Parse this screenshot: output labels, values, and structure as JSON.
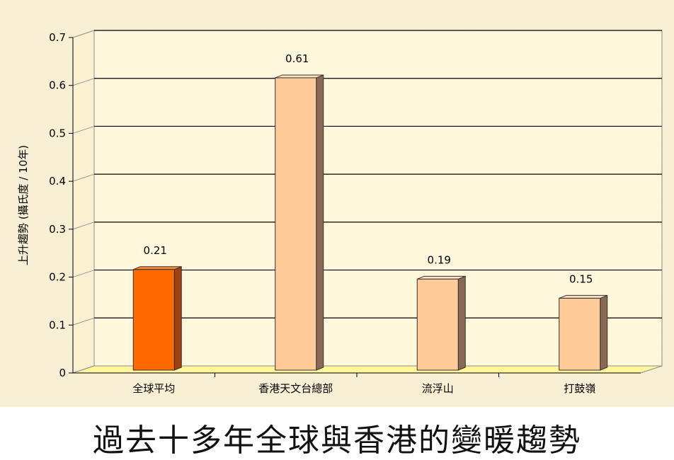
{
  "chart_data": {
    "type": "bar",
    "title": "過去十多年全球與香港的變暖趨勢",
    "ylabel": "上升趨勢 (攝氏度 / 10年)",
    "xlabel": "",
    "categories": [
      "全球平均",
      "香港天文台總部",
      "流浮山",
      "打鼓嶺"
    ],
    "values": [
      0.21,
      0.61,
      0.19,
      0.15
    ],
    "data_labels": [
      "0.21",
      "0.61",
      "0.19",
      "0.15"
    ],
    "ylim": [
      0,
      0.7
    ],
    "yticks": [
      0,
      0.1,
      0.2,
      0.3,
      0.4,
      0.5,
      0.6,
      0.7
    ],
    "ytick_labels": [
      "0",
      "0.1",
      "0.2",
      "0.3",
      "0.4",
      "0.5",
      "0.6",
      "0.7"
    ],
    "grid": true,
    "legend": "none",
    "colors": {
      "background": "#fbf2d8",
      "plot_area": "#fff8dc",
      "floor": "#fff59a",
      "highlight_bar": "#ff6a00",
      "highlight_bar_side": "#a04010",
      "bar": "#ffcc99",
      "bar_side": "#8a6a54"
    },
    "highlight_index": 0
  }
}
